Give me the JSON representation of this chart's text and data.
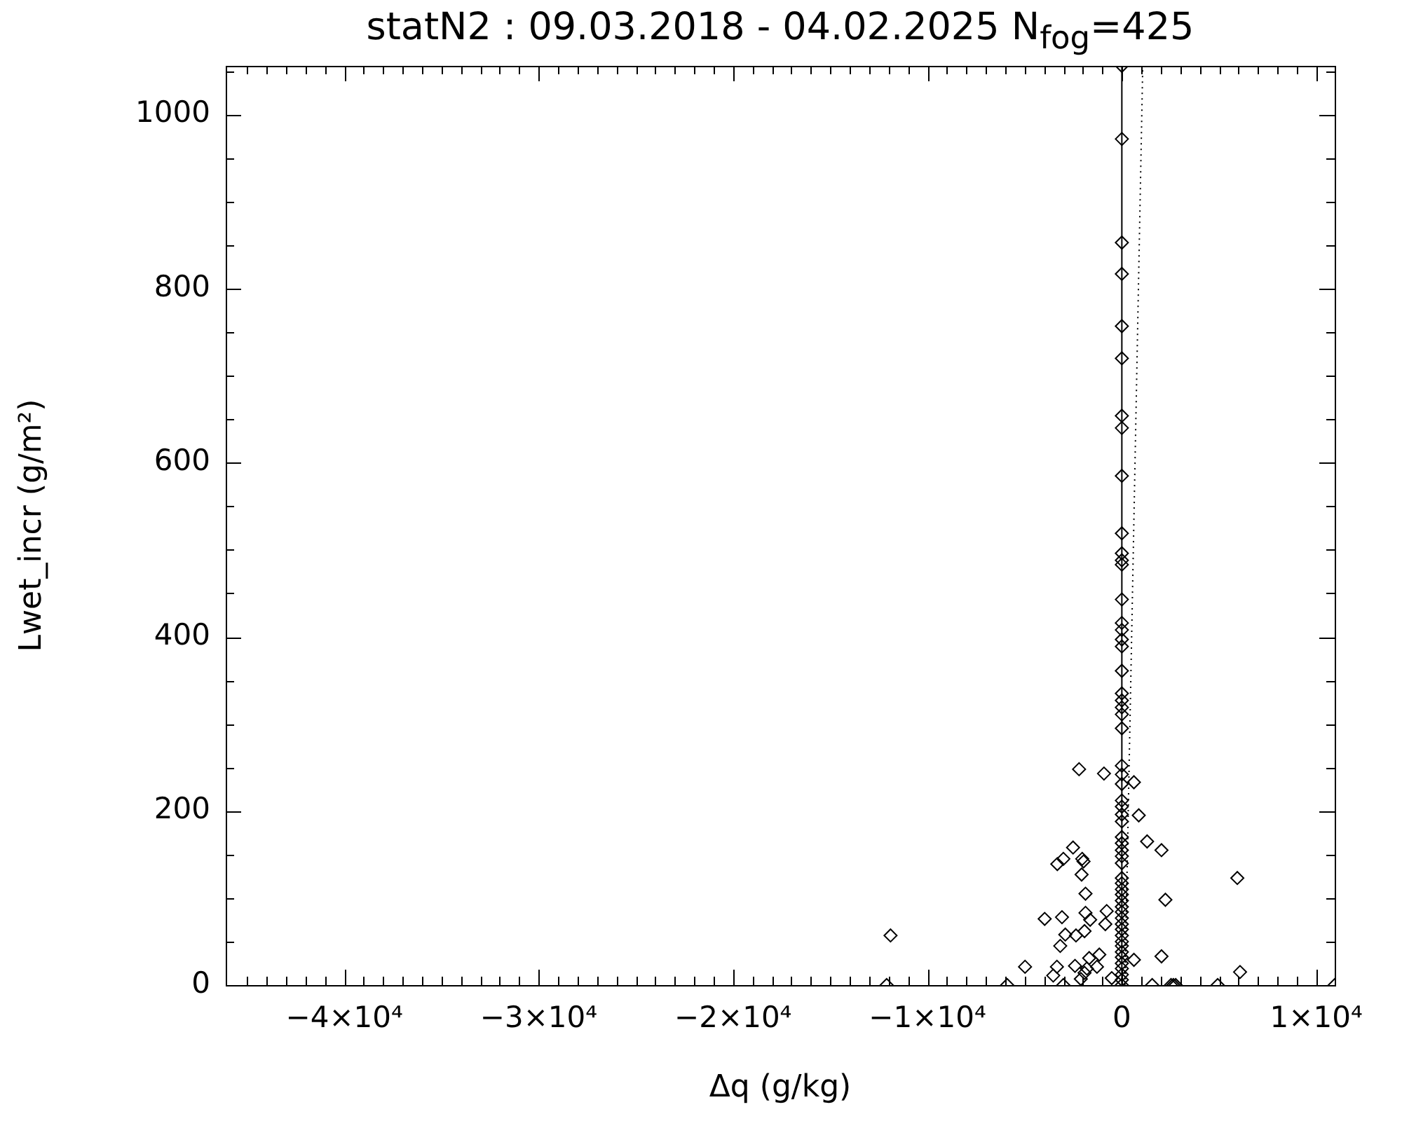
{
  "chart_data": {
    "type": "scatter",
    "title": "statN2 : 09.03.2018 - 04.02.2025 N$_{fog}$=425",
    "xlabel": "Δq (g/kg)",
    "ylabel": "Lwet_incr (g/m²)",
    "xlim": [
      -46100,
      10950
    ],
    "ylim": [
      0,
      1056
    ],
    "xticks": [
      {
        "value": -45000,
        "label": null
      },
      {
        "value": -44000,
        "label": null
      },
      {
        "value": -43000,
        "label": null
      },
      {
        "value": -42000,
        "label": null
      },
      {
        "value": -41000,
        "label": null
      },
      {
        "value": -40000,
        "label": "−4×10⁴"
      },
      {
        "value": -39000,
        "label": null
      },
      {
        "value": -38000,
        "label": null
      },
      {
        "value": -37000,
        "label": null
      },
      {
        "value": -36000,
        "label": null
      },
      {
        "value": -35000,
        "label": null
      },
      {
        "value": -34000,
        "label": null
      },
      {
        "value": -33000,
        "label": null
      },
      {
        "value": -32000,
        "label": null
      },
      {
        "value": -31000,
        "label": null
      },
      {
        "value": -30000,
        "label": "−3×10⁴"
      },
      {
        "value": -29000,
        "label": null
      },
      {
        "value": -28000,
        "label": null
      },
      {
        "value": -27000,
        "label": null
      },
      {
        "value": -26000,
        "label": null
      },
      {
        "value": -25000,
        "label": null
      },
      {
        "value": -24000,
        "label": null
      },
      {
        "value": -23000,
        "label": null
      },
      {
        "value": -22000,
        "label": null
      },
      {
        "value": -21000,
        "label": null
      },
      {
        "value": -20000,
        "label": "−2×10⁴"
      },
      {
        "value": -19000,
        "label": null
      },
      {
        "value": -18000,
        "label": null
      },
      {
        "value": -17000,
        "label": null
      },
      {
        "value": -16000,
        "label": null
      },
      {
        "value": -15000,
        "label": null
      },
      {
        "value": -14000,
        "label": null
      },
      {
        "value": -13000,
        "label": null
      },
      {
        "value": -12000,
        "label": null
      },
      {
        "value": -11000,
        "label": null
      },
      {
        "value": -10000,
        "label": "−1×10⁴"
      },
      {
        "value": -9000,
        "label": null
      },
      {
        "value": -8000,
        "label": null
      },
      {
        "value": -7000,
        "label": null
      },
      {
        "value": -6000,
        "label": null
      },
      {
        "value": -5000,
        "label": null
      },
      {
        "value": -4000,
        "label": null
      },
      {
        "value": -3000,
        "label": null
      },
      {
        "value": -2000,
        "label": null
      },
      {
        "value": -1000,
        "label": null
      },
      0,
      {
        "value": 1000,
        "label": null
      },
      {
        "value": 2000,
        "label": null
      },
      {
        "value": 3000,
        "label": null
      },
      {
        "value": 4000,
        "label": null
      },
      {
        "value": 5000,
        "label": null
      },
      {
        "value": 6000,
        "label": null
      },
      {
        "value": 7000,
        "label": null
      },
      {
        "value": 8000,
        "label": null
      },
      {
        "value": 9000,
        "label": null
      },
      {
        "value": 10000,
        "label": "1×10⁴"
      }
    ],
    "yticks": [
      0,
      {
        "value": 50,
        "label": null
      },
      {
        "value": 100,
        "label": null
      },
      {
        "value": 150,
        "label": null
      },
      200,
      {
        "value": 250,
        "label": null
      },
      {
        "value": 300,
        "label": null
      },
      {
        "value": 350,
        "label": null
      },
      400,
      {
        "value": 450,
        "label": null
      },
      {
        "value": 500,
        "label": null
      },
      {
        "value": 550,
        "label": null
      },
      600,
      {
        "value": 650,
        "label": null
      },
      {
        "value": 700,
        "label": null
      },
      {
        "value": 750,
        "label": null
      },
      800,
      {
        "value": 850,
        "label": null
      },
      {
        "value": 900,
        "label": null
      },
      {
        "value": 950,
        "label": null
      },
      1000,
      {
        "value": 1050,
        "label": null
      }
    ],
    "grid": false,
    "legend": false,
    "marker": "diamond",
    "ref_lines": [
      {
        "axis": "x",
        "value": 0,
        "color": "#000000",
        "line_style": "solid"
      }
    ],
    "series": [
      {
        "color": "#000000",
        "x": [
          0,
          0,
          0,
          0,
          0,
          0,
          0,
          0,
          0,
          0,
          0,
          0,
          0,
          0,
          0,
          0,
          0,
          0,
          0,
          0,
          0,
          0,
          0,
          0,
          0,
          0,
          0,
          0,
          0,
          0,
          0,
          0,
          0,
          0,
          0,
          0,
          0,
          0,
          0,
          0,
          0,
          0,
          0,
          0,
          0,
          0,
          0,
          0,
          0,
          0,
          0,
          0,
          0,
          0,
          0,
          0,
          -2200,
          -920,
          620,
          870,
          1300,
          2040,
          -2510,
          -3010,
          -3320,
          -2040,
          -1970,
          -2070,
          -1870,
          5940,
          2240,
          -3970,
          -3080,
          -1870,
          -1630,
          -780,
          -850,
          -2910,
          -2360,
          -1920,
          -3170,
          -11900,
          -4980,
          -3340,
          -2410,
          -1680,
          -1160,
          -1280,
          -1800,
          -1920,
          -2110,
          -3530,
          -520,
          620,
          2040,
          6080,
          -12100,
          -5900,
          -3010,
          1560,
          2530,
          2650,
          2770,
          4930,
          10950
        ],
        "values": [
          1056,
          972,
          853,
          817,
          757,
          720,
          654,
          640,
          585,
          519,
          496,
          488,
          483,
          443,
          416,
          408,
          397,
          389,
          361,
          335,
          327,
          319,
          311,
          295,
          252,
          242,
          231,
          212,
          205,
          196,
          188,
          170,
          163,
          155,
          148,
          140,
          123,
          117,
          110,
          104,
          97,
          90,
          84,
          77,
          70,
          64,
          57,
          50,
          45,
          38,
          32,
          25,
          19,
          12,
          6,
          0,
          248,
          243,
          233,
          195,
          165,
          155,
          158,
          145,
          139,
          145,
          142,
          127,
          105,
          123,
          98,
          76,
          78,
          83,
          75,
          85,
          70,
          58,
          57,
          62,
          45,
          57,
          21,
          21,
          22,
          31,
          35,
          21,
          19,
          14,
          7,
          11,
          8,
          29,
          33,
          15,
          0,
          0,
          0,
          0,
          0,
          0,
          0,
          0,
          0
        ]
      },
      {
        "type": "line",
        "color": "#000000",
        "line_style": "dotted",
        "marker": "none",
        "x": [
          155,
          1075
        ],
        "values": [
          0,
          1056
        ]
      }
    ]
  }
}
